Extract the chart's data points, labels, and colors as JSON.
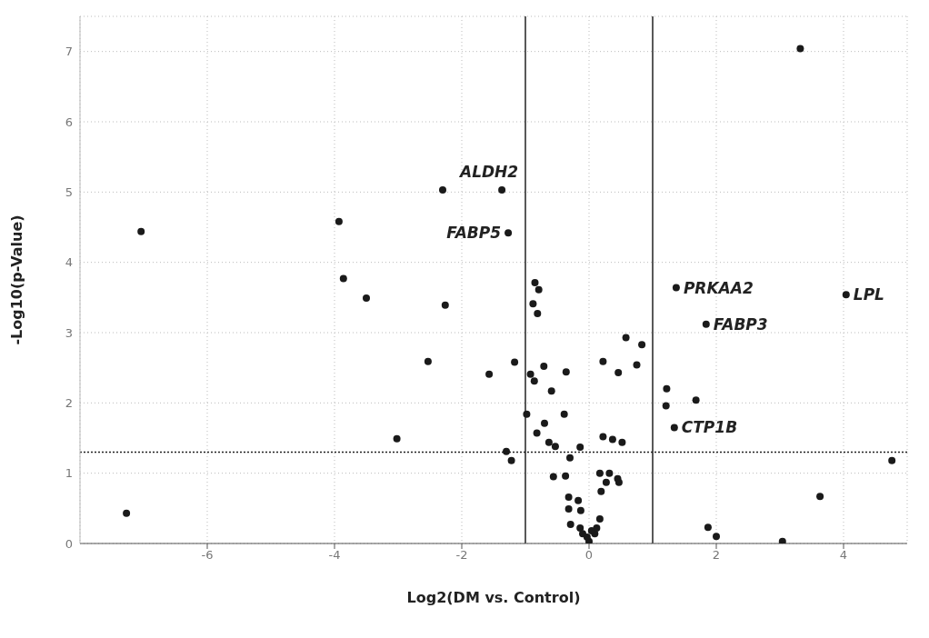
{
  "chart_data": {
    "type": "scatter",
    "xlabel": "Log2(DM vs. Control)",
    "ylabel": "-Log10(p-Value)",
    "x": [
      -7.04,
      -7.27,
      -3.93,
      -3.86,
      -3.5,
      -2.26,
      -2.3,
      -2.53,
      -1.57,
      -3.02,
      -1.37,
      -1.27,
      -0.85,
      -0.79,
      -0.88,
      -0.81,
      -1.17,
      -0.71,
      -0.36,
      -0.92,
      -0.86,
      -0.59,
      -0.98,
      -0.39,
      -0.7,
      -0.82,
      -0.63,
      -0.53,
      -0.14,
      -0.3,
      -1.3,
      -1.22,
      -0.56,
      -0.37,
      -0.32,
      -0.17,
      -0.32,
      -0.13,
      -0.29,
      -0.14,
      -0.1,
      0.0,
      -0.03,
      0.09,
      0.12,
      0.17,
      0.04,
      0.22,
      0.46,
      0.58,
      0.83,
      0.75,
      0.22,
      0.37,
      0.52,
      0.17,
      0.32,
      0.27,
      0.45,
      0.47,
      0.19,
      1.22,
      1.21,
      1.68,
      1.34,
      1.37,
      1.84,
      4.04,
      4.76,
      3.63,
      1.87,
      2.0,
      3.04,
      3.32
    ],
    "values": [
      4.44,
      0.43,
      4.58,
      3.77,
      3.49,
      3.39,
      5.03,
      2.59,
      2.41,
      1.49,
      5.03,
      4.42,
      3.71,
      3.61,
      3.41,
      3.27,
      2.58,
      2.52,
      2.44,
      2.41,
      2.31,
      2.17,
      1.84,
      1.84,
      1.71,
      1.57,
      1.44,
      1.38,
      1.37,
      1.22,
      1.31,
      1.18,
      0.95,
      0.96,
      0.66,
      0.61,
      0.49,
      0.47,
      0.27,
      0.22,
      0.14,
      0.03,
      0.09,
      0.14,
      0.22,
      0.35,
      0.18,
      2.59,
      2.43,
      2.93,
      2.83,
      2.54,
      1.52,
      1.48,
      1.44,
      1.0,
      1.0,
      0.87,
      0.92,
      0.87,
      0.74,
      2.2,
      1.96,
      2.04,
      1.65,
      3.64,
      3.12,
      3.54,
      1.18,
      0.67,
      0.23,
      0.1,
      0.03,
      7.04
    ],
    "color": "#1a1a1a",
    "marker": "circle",
    "xlim": [
      -8,
      5
    ],
    "xticks": [
      -6,
      -4,
      -2,
      0,
      2,
      4
    ],
    "ylim": [
      0,
      7.5
    ],
    "yticks": [
      0,
      1,
      2,
      3,
      4,
      5,
      6,
      7
    ],
    "grid": true,
    "ref_lines": [
      {
        "axis": "x",
        "value": -1,
        "color": "#222222"
      },
      {
        "axis": "x",
        "value": 1,
        "color": "#222222"
      },
      {
        "axis": "y",
        "value": 1.3,
        "color": "#222222",
        "line_style": "dotted"
      }
    ],
    "annotations": [
      {
        "text": "ALDH2",
        "x": -1.37,
        "y": 5.03
      },
      {
        "text": "FABP5",
        "x": -1.27,
        "y": 4.42
      },
      {
        "text": "PRKAA2",
        "x": 1.37,
        "y": 3.64
      },
      {
        "text": "FABP3",
        "x": 1.84,
        "y": 3.12
      },
      {
        "text": "CTP1B",
        "x": 1.34,
        "y": 1.65
      },
      {
        "text": "LPL",
        "x": 4.04,
        "y": 3.54
      }
    ]
  }
}
